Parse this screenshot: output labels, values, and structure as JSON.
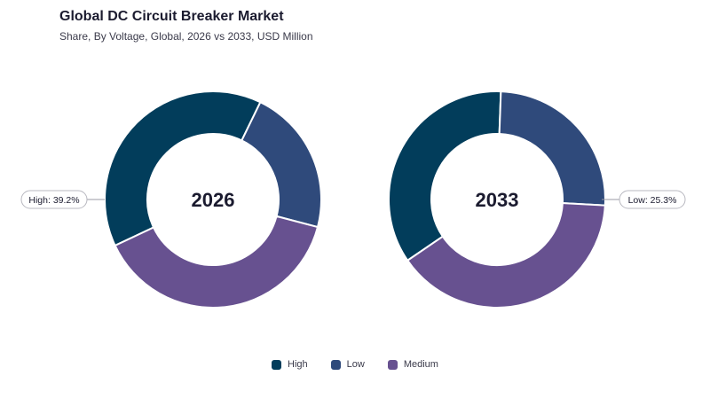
{
  "header": {
    "title": "Global DC Circuit Breaker Market",
    "subtitle": "Share, By Voltage, Global, 2026 vs 2033, USD Million"
  },
  "colors": {
    "High": "#023d5b",
    "Low": "#2f4a7b",
    "Medium": "#675190"
  },
  "chart_data": [
    {
      "type": "pie",
      "center_label": "2026",
      "categories": [
        "High",
        "Low",
        "Medium"
      ],
      "values": [
        39.2,
        21.9,
        38.9
      ],
      "annotation": {
        "category": "High",
        "text": "High: 39.2%"
      }
    },
    {
      "type": "pie",
      "center_label": "2033",
      "categories": [
        "High",
        "Low",
        "Medium"
      ],
      "values": [
        35.1,
        25.3,
        39.6
      ],
      "annotation": {
        "category": "Low",
        "text": "Low: 25.3%"
      }
    }
  ],
  "legend": [
    {
      "label": "High",
      "color": "#023d5b"
    },
    {
      "label": "Low",
      "color": "#2f4a7b"
    },
    {
      "label": "Medium",
      "color": "#675190"
    }
  ]
}
